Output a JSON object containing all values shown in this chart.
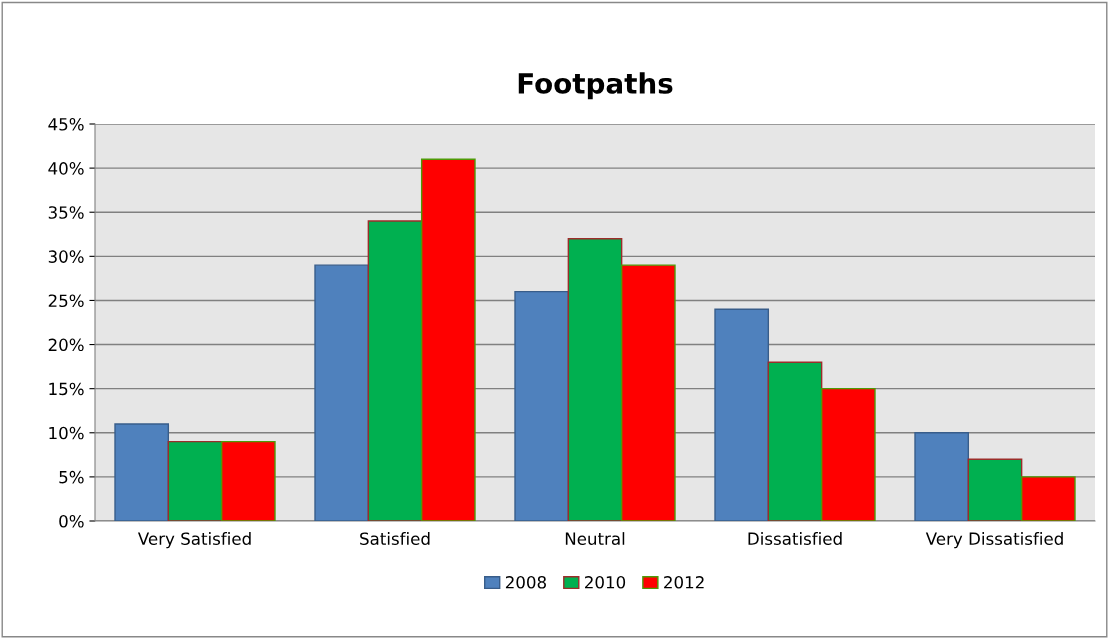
{
  "chart_data": {
    "type": "bar",
    "title": "Footpaths",
    "categories": [
      "Very Satisfied",
      "Satisfied",
      "Neutral",
      "Dissatisfied",
      "Very Dissatisfied"
    ],
    "series": [
      {
        "name": "2008",
        "color": "#4f81bd",
        "values": [
          11,
          29,
          26,
          24,
          10
        ]
      },
      {
        "name": "2010",
        "color": "#00b050",
        "values": [
          9,
          34,
          32,
          18,
          7
        ]
      },
      {
        "name": "2012",
        "color": "#ff0000",
        "values": [
          9,
          41,
          29,
          15,
          5
        ]
      }
    ],
    "ylim": [
      0,
      45
    ],
    "yticks": [
      {
        "value": 0,
        "label": "0%"
      },
      {
        "value": 5,
        "label": "5%"
      },
      {
        "value": 10,
        "label": "10%"
      },
      {
        "value": 15,
        "label": "15%"
      },
      {
        "value": 20,
        "label": "20%"
      },
      {
        "value": 25,
        "label": "25%"
      },
      {
        "value": 30,
        "label": "30%"
      },
      {
        "value": 35,
        "label": "35%"
      },
      {
        "value": 40,
        "label": "40%"
      },
      {
        "value": 45,
        "label": "45%"
      }
    ],
    "grid": "y",
    "legend": "bottom"
  }
}
